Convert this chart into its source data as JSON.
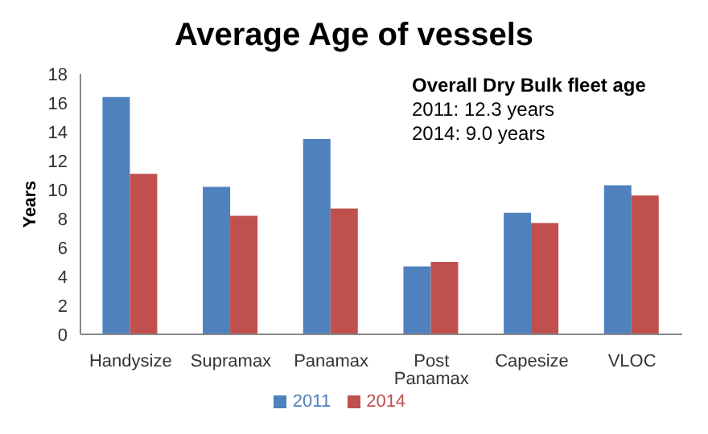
{
  "chart_data": {
    "type": "bar",
    "title": "Average Age of vessels",
    "ylabel": "Years",
    "categories": [
      "Handysize",
      "Supramax",
      "Panamax",
      "Post Panamax",
      "Capesize",
      "VLOC"
    ],
    "series": [
      {
        "name": "2011",
        "color": "#4f81bd",
        "values": [
          16.4,
          10.2,
          13.5,
          4.7,
          8.4,
          10.3
        ]
      },
      {
        "name": "2014",
        "color": "#c0504d",
        "values": [
          11.1,
          8.2,
          8.7,
          5.0,
          7.7,
          9.6
        ]
      }
    ],
    "ylim": [
      0,
      18
    ],
    "yticks": [
      0,
      2,
      4,
      6,
      8,
      10,
      12,
      14,
      16,
      18
    ],
    "grid": false,
    "legend": "bottom",
    "annotations": [
      "Overall Dry Bulk fleet age",
      "2011: 12.3 years",
      "2014: 9.0 years"
    ]
  }
}
